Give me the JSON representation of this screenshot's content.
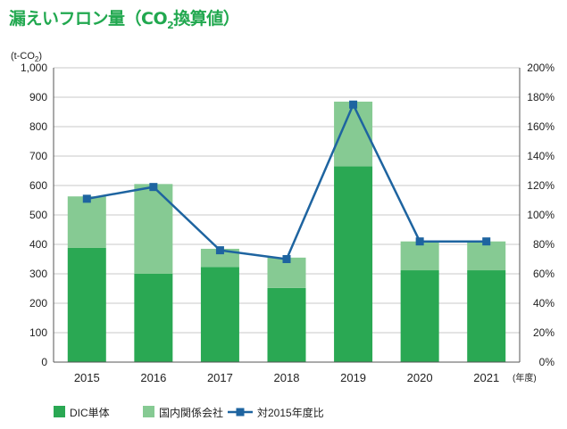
{
  "title": {
    "main": "漏えいフロン量（CO",
    "sub": "2",
    "tail": "換算値）"
  },
  "colors": {
    "dic": "#2aa853",
    "affiliates": "#86ca93",
    "ratio_line": "#1e64a0",
    "title": "#21a84f"
  },
  "chart_data": {
    "type": "bar",
    "stacked": true,
    "categories": [
      "2015",
      "2016",
      "2017",
      "2018",
      "2019",
      "2020",
      "2021"
    ],
    "x_unit": "(年度)",
    "y_unit": {
      "main": "(t-CO",
      "sub": "2",
      "tail": ")"
    },
    "ylim": [
      0,
      1000
    ],
    "yticks": [
      "0",
      "100",
      "200",
      "300",
      "400",
      "500",
      "600",
      "700",
      "800",
      "900",
      "1,000"
    ],
    "y2lim": [
      0,
      200
    ],
    "y2ticks": [
      "0%",
      "20%",
      "40%",
      "60%",
      "80%",
      "100%",
      "120%",
      "140%",
      "160%",
      "180%",
      "200%"
    ],
    "grid": true,
    "legend_position": "bottom",
    "series": [
      {
        "name": "DIC単体",
        "type": "bar",
        "values": [
          388,
          300,
          323,
          252,
          665,
          312,
          312
        ]
      },
      {
        "name": "国内関係会社",
        "type": "bar",
        "values": [
          175,
          305,
          62,
          103,
          220,
          98,
          98
        ]
      },
      {
        "name": "対2015年度比",
        "type": "line",
        "axis": "right",
        "values": [
          111,
          119,
          76,
          70,
          175,
          82,
          82
        ]
      }
    ]
  }
}
